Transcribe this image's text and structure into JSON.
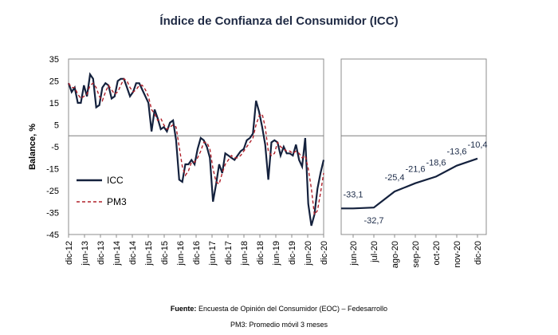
{
  "title": "Índice de Confianza del Consumidor (ICC)",
  "footer": {
    "source_label": "Fuente:",
    "source_text": "Encuesta de Opinión del Consumidor (EOC) – Fedesarrollo",
    "note": "PM3: Promedio móvil 3 meses"
  },
  "colors": {
    "icc": "#14213d",
    "pm3": "#b0202a",
    "axis": "#8c8c8c",
    "zero": "#7f7f7f"
  },
  "chart_data": [
    {
      "type": "line",
      "ylabel": "Balance, %",
      "ylim": [
        -45,
        35
      ],
      "yticks": [
        35,
        25,
        15,
        5,
        -5,
        -15,
        -25,
        -35,
        -45
      ],
      "xtick_labels": [
        "dic-12",
        "jun-13",
        "dic-13",
        "jun-14",
        "dic-14",
        "jun-15",
        "dic-15",
        "jun-16",
        "dic-16",
        "jun-17",
        "dic-17",
        "jun-18",
        "dic-18",
        "jun-19",
        "dic-19",
        "jun-20",
        "dic-20"
      ],
      "x_start": "dic-12",
      "x_end": "dic-20",
      "legend_position": "left",
      "series": [
        {
          "name": "ICC",
          "style": "solid",
          "values": [
            24,
            20,
            22,
            15,
            15,
            23,
            18,
            28,
            26,
            13,
            14,
            22,
            24,
            23,
            17,
            18,
            25,
            26,
            26,
            22,
            18,
            20,
            24,
            24,
            21,
            18,
            15,
            2,
            12,
            8,
            3,
            4,
            2,
            6,
            7,
            -2,
            -20,
            -21,
            -13,
            -13,
            -11,
            -13,
            -6,
            -1,
            -2,
            -5,
            -10,
            -30,
            -22,
            -13,
            -17,
            -8,
            -9,
            -10,
            -11,
            -9,
            -7,
            -6,
            -2,
            -1,
            1,
            16,
            11,
            4,
            -4,
            -20,
            -3,
            -2,
            -3,
            -9,
            -5,
            -8,
            -8,
            -9,
            -4,
            -11,
            -14,
            -1,
            -31,
            -41,
            -36,
            -24,
            -17,
            -11
          ]
        },
        {
          "name": "PM3",
          "style": "dashed",
          "values": [
            24,
            22,
            22,
            19,
            17,
            18,
            19,
            23,
            24,
            22,
            18,
            16,
            20,
            23,
            21,
            19,
            20,
            23,
            26,
            25,
            22,
            20,
            21,
            23,
            23,
            21,
            18,
            12,
            10,
            7,
            8,
            5,
            3,
            4,
            5,
            4,
            -5,
            -14,
            -18,
            -16,
            -12,
            -12,
            -10,
            -7,
            -3,
            -3,
            -6,
            -15,
            -21,
            -22,
            -17,
            -13,
            -11,
            -9,
            -10,
            -10,
            -9,
            -7,
            -5,
            -3,
            -1,
            5,
            9,
            10,
            4,
            -7,
            -9,
            -8,
            -3,
            -5,
            -6,
            -7,
            -7,
            -8,
            -7,
            -8,
            -10,
            -9,
            -15,
            -24,
            -36,
            -34,
            -26,
            -17
          ]
        }
      ]
    },
    {
      "type": "line",
      "categories": [
        "jun-20",
        "jul-20",
        "ago-20",
        "sep-20",
        "oct-20",
        "nov-20",
        "dic-20"
      ],
      "series": [
        {
          "name": "ICC",
          "values": [
            -33.1,
            -32.7,
            -25.4,
            -21.6,
            -18.6,
            -13.6,
            -10.4
          ]
        }
      ],
      "data_labels": [
        "-33,1",
        "-32,7",
        "-25,4",
        "-21,6",
        "-18,6",
        "-13,6",
        "-10,4"
      ],
      "ylim": [
        -45,
        35
      ]
    }
  ]
}
